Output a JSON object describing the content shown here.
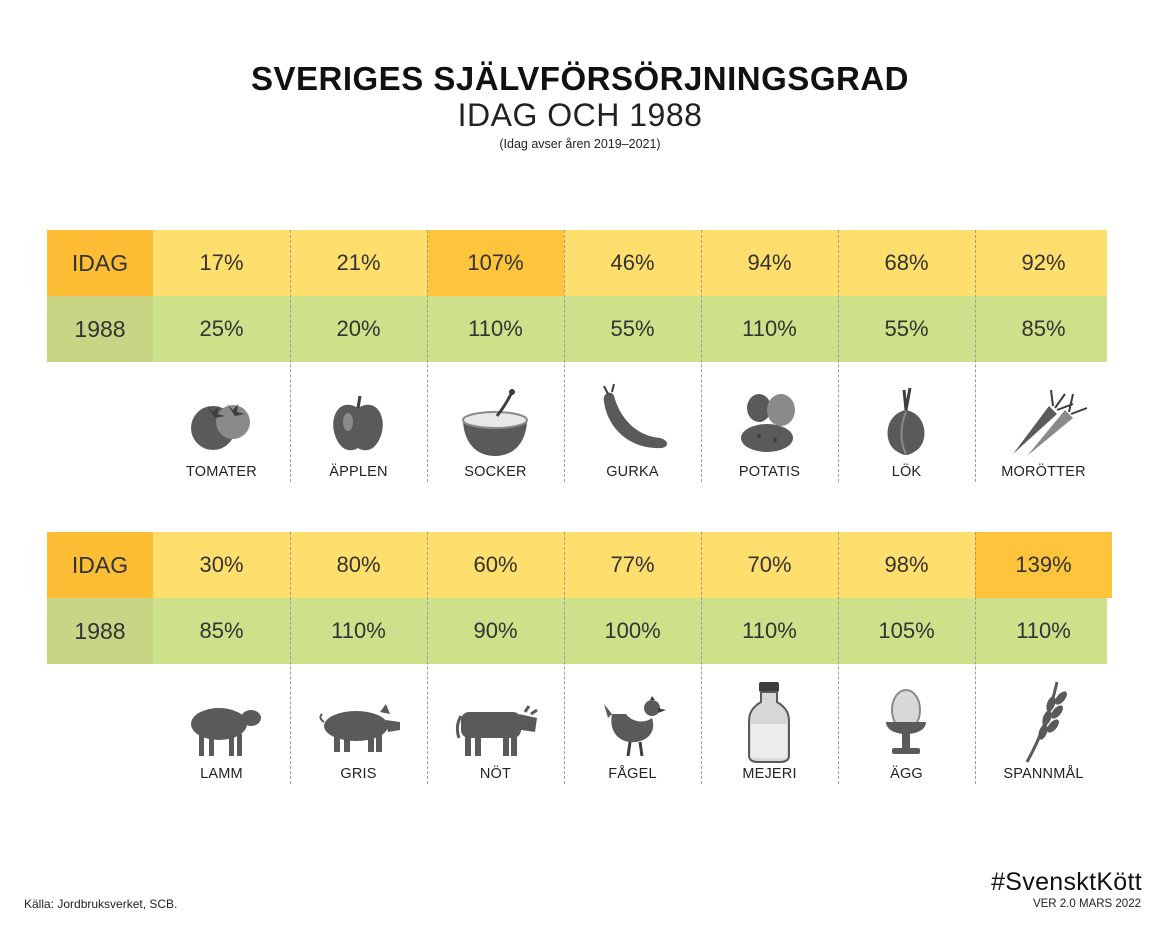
{
  "header": {
    "title": "SVERIGES SJÄLVFÖRSÖRJNINGSGRAD",
    "subtitle": "IDAG OCH 1988",
    "note": "(Idag avser åren 2019–2021)"
  },
  "footer": {
    "source": "Källa: Jordbruksverket, SCB.",
    "hashtag": "#SvensktKött",
    "version": "VER 2.0 MARS 2022"
  },
  "colors": {
    "idag_row": "#fede6c",
    "idag_label": "#fdbd35",
    "idag_highlight": "#fdc43c",
    "row_1988": "#cde08a",
    "label_1988": "#c8d585",
    "icon": "#5a5a5a"
  },
  "chart_data": {
    "type": "table",
    "row_labels": [
      "IDAG",
      "1988"
    ],
    "groups": [
      {
        "categories": [
          "TOMATER",
          "ÄPPLEN",
          "SOCKER",
          "GURKA",
          "POTATIS",
          "LÖK",
          "MORÖTTER"
        ],
        "icons": [
          "tomato-icon",
          "apple-icon",
          "sugar-bowl-icon",
          "cucumber-icon",
          "potato-icon",
          "onion-icon",
          "carrot-icon"
        ],
        "series": [
          {
            "name": "IDAG",
            "values": [
              "17%",
              "21%",
              "107%",
              "46%",
              "94%",
              "68%",
              "92%"
            ]
          },
          {
            "name": "1988",
            "values": [
              "25%",
              "20%",
              "110%",
              "55%",
              "110%",
              "55%",
              "85%"
            ]
          }
        ]
      },
      {
        "categories": [
          "LAMM",
          "GRIS",
          "NÖT",
          "FÅGEL",
          "MEJERI",
          "ÄGG",
          "SPANNMÅL"
        ],
        "icons": [
          "sheep-icon",
          "pig-icon",
          "cow-icon",
          "chicken-icon",
          "milk-bottle-icon",
          "egg-icon",
          "wheat-icon"
        ],
        "series": [
          {
            "name": "IDAG",
            "values": [
              "30%",
              "80%",
              "60%",
              "77%",
              "70%",
              "98%",
              "139%"
            ]
          },
          {
            "name": "1988",
            "values": [
              "85%",
              "110%",
              "90%",
              "100%",
              "110%",
              "105%",
              "110%"
            ]
          }
        ]
      }
    ]
  }
}
